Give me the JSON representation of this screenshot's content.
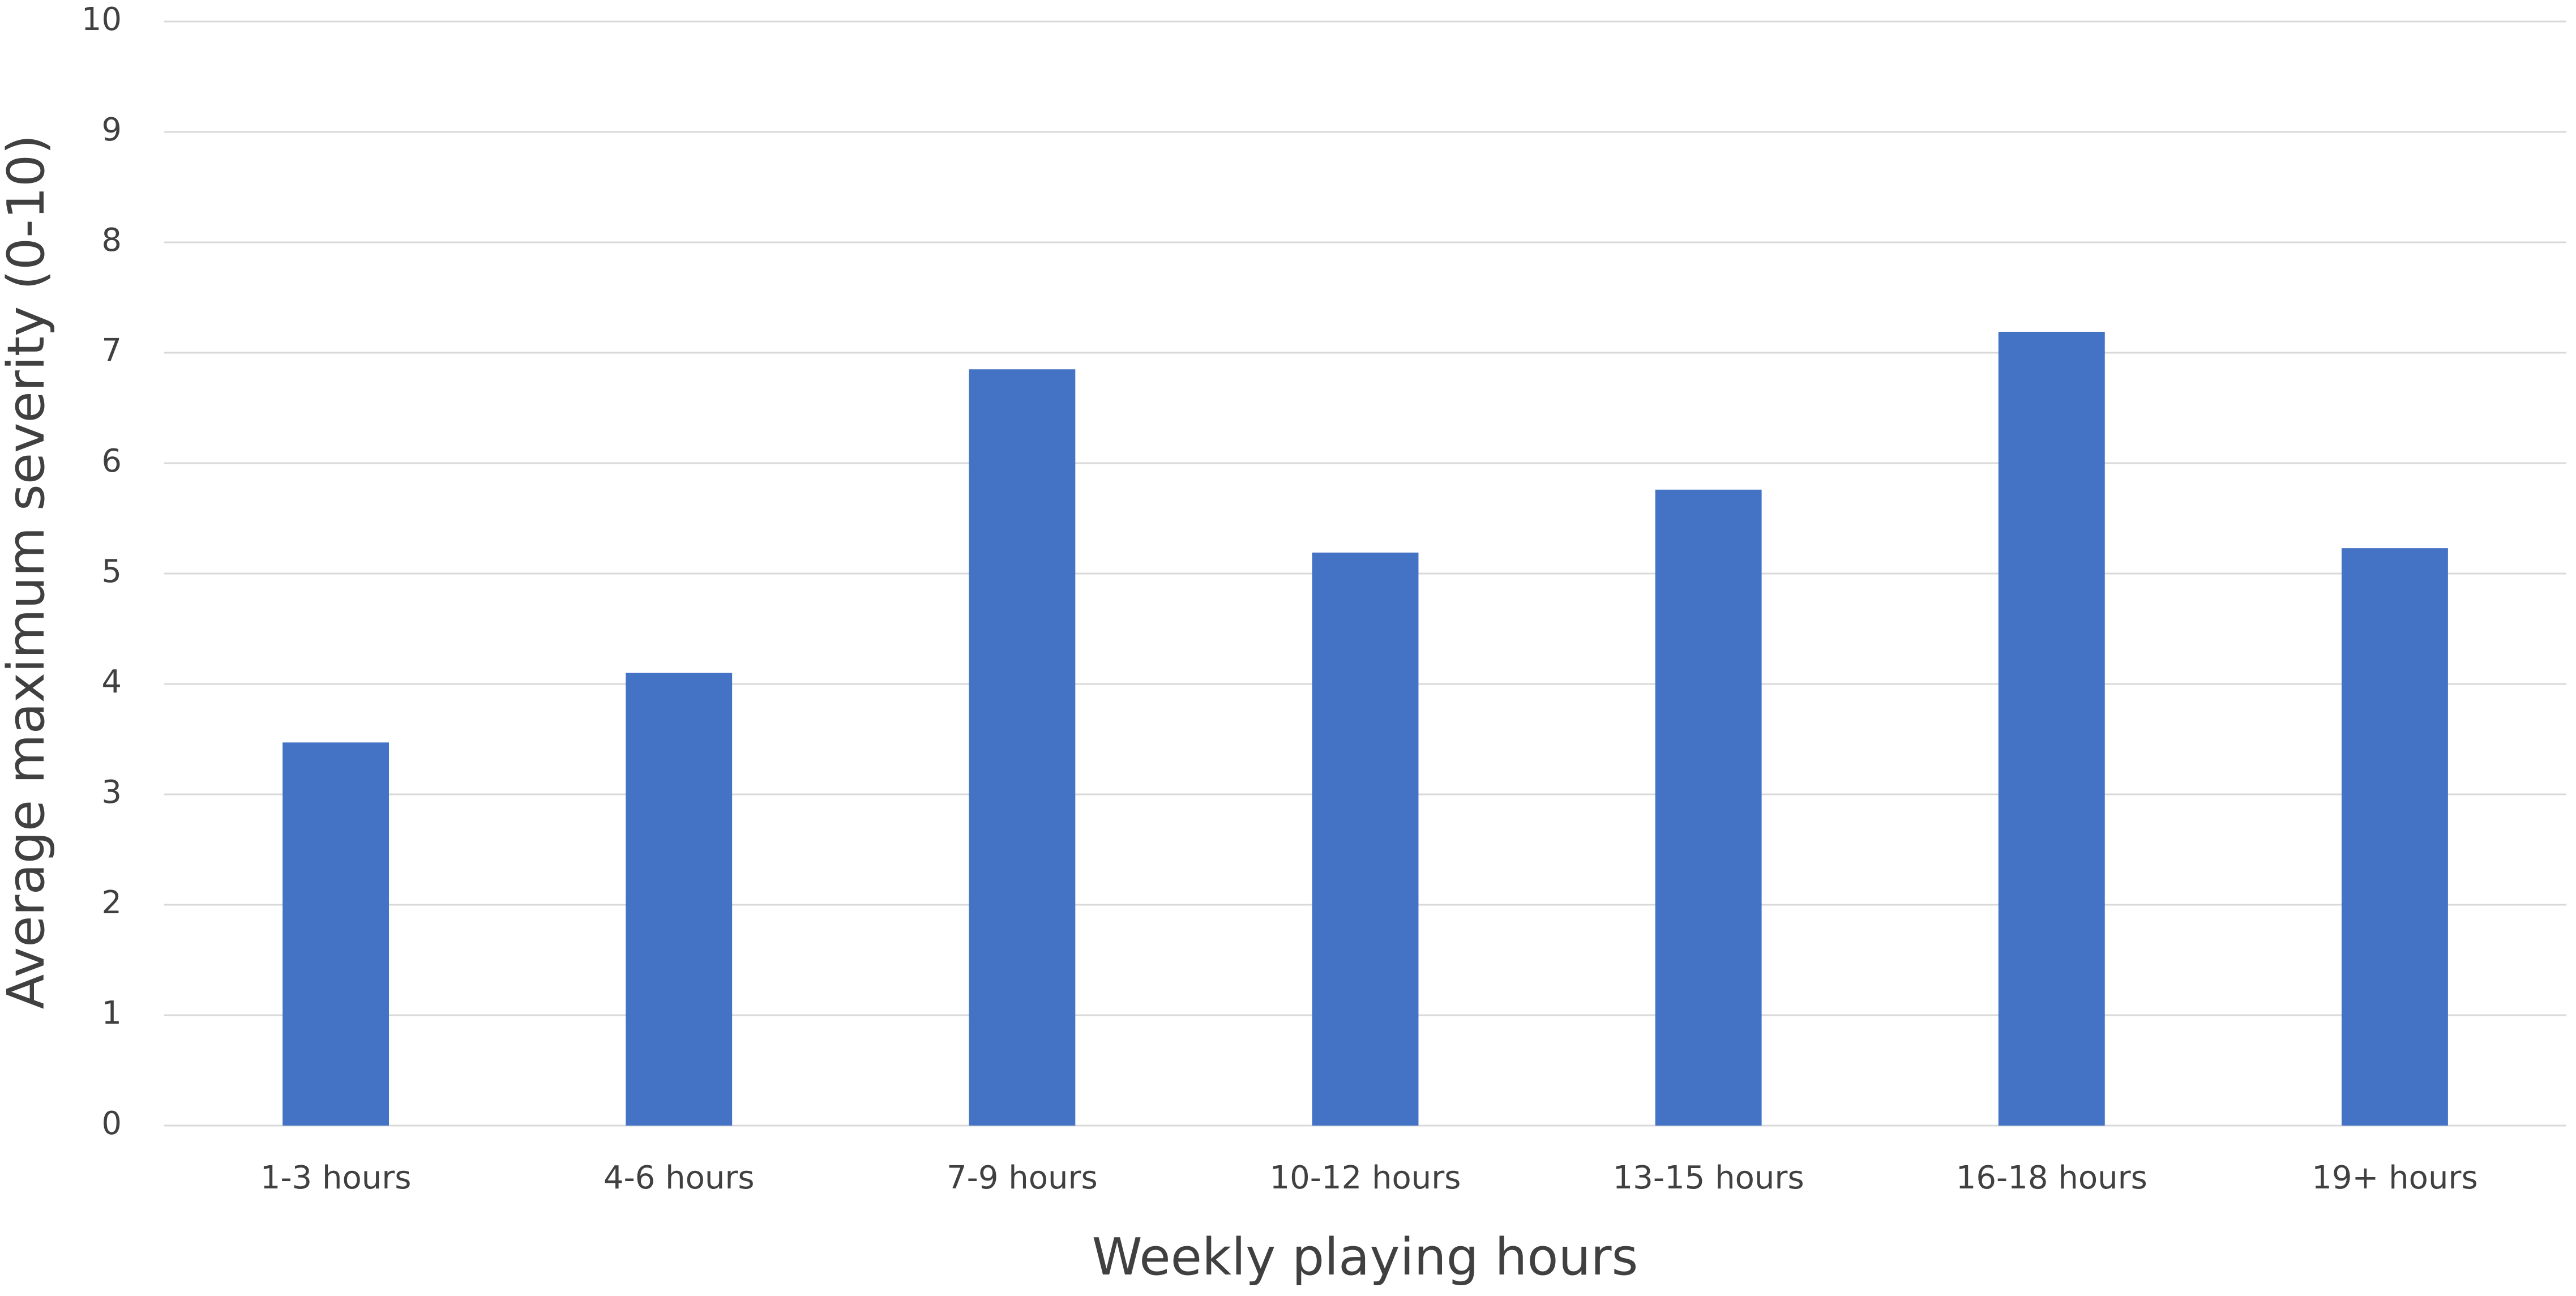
{
  "chart_data": {
    "type": "bar",
    "x_label": "Weekly playing hours",
    "y_label": "Average maximum severity (0-10)",
    "categories": [
      "1-3 hours",
      "4-6 hours",
      "7-9 hours",
      "10-12 hours",
      "13-15 hours",
      "16-18 hours",
      "19+ hours"
    ],
    "values": [
      3.47,
      4.1,
      6.85,
      5.19,
      5.76,
      7.19,
      5.23
    ],
    "color": "#4472c4",
    "ylim": [
      0,
      10
    ],
    "yticks": [
      0,
      1,
      2,
      3,
      4,
      5,
      6,
      7,
      8,
      9,
      10
    ],
    "grid": true
  }
}
